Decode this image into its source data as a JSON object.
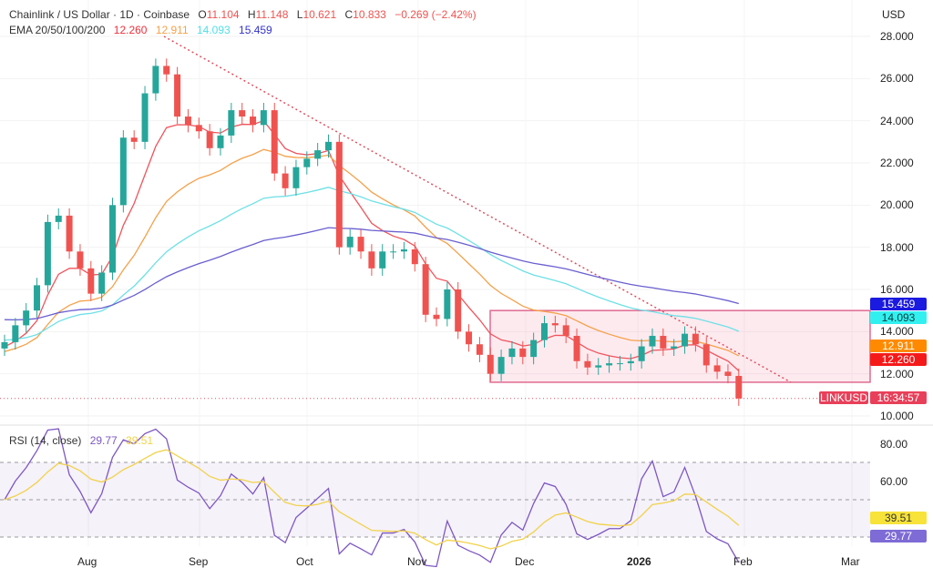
{
  "header": {
    "symbol": "Chainlink / US Dollar · 1D · Coinbase",
    "o_label": "O",
    "o": "11.104",
    "h_label": "H",
    "h": "11.148",
    "l_label": "L",
    "l": "10.621",
    "c_label": "C",
    "c": "10.833",
    "change": "−0.269 (−2.42%)"
  },
  "ema": {
    "label": "EMA 20/50/100/200",
    "v20": "12.260",
    "v50": "12.911",
    "v100": "14.093",
    "v200": "15.459"
  },
  "rsi": {
    "label": "RSI (14, close)",
    "value": "29.77",
    "ma": "39.51"
  },
  "currency": "USD",
  "symbol_tag": "LINKUSD",
  "countdown": "16:34:57",
  "colors": {
    "up": "#26a69a",
    "down": "#ef5350",
    "ema20": "#f0545c",
    "ema50": "#f5a14a",
    "ema100": "#6ee0e6",
    "ema200": "#6a5fd0",
    "rsi": "#7e57c2",
    "rsi_ma": "#f2d24a"
  },
  "chart_data": {
    "type": "candlestick",
    "start_date": "2025-07-08",
    "step_days": 3,
    "closes": [
      13.5,
      14.3,
      15,
      16.2,
      19.2,
      19.5,
      17.8,
      17,
      15.8,
      16.8,
      20,
      23.2,
      23,
      25.3,
      26.6,
      26.2,
      24.2,
      23.8,
      23.5,
      22.7,
      23.3,
      24.5,
      24.2,
      23.8,
      24.5,
      21.5,
      20.8,
      21.8,
      22.2,
      22.6,
      23,
      18,
      18.5,
      17.8,
      17,
      17.8,
      17.8,
      17.9,
      17.2,
      14.8,
      14.6,
      16,
      14,
      13.4,
      12.9,
      12,
      12.8,
      13.2,
      12.8,
      13.6,
      14.4,
      14.3,
      13.8,
      12.6,
      12.3,
      12.4,
      12.5,
      12.5,
      12.6,
      13.3,
      13.8,
      13.2,
      13.3,
      13.9,
      13.4,
      12.4,
      12.1,
      11.9,
      10.83
    ],
    "ema_seeds": {
      "ema20": 13.2,
      "ema50": 13.0,
      "ema100": 13.6,
      "ema200": 14.6
    },
    "y_ticks": [
      "28.000",
      "26.000",
      "24.000",
      "22.000",
      "20.000",
      "18.000",
      "16.000",
      "14.000",
      "12.000",
      "10.000"
    ],
    "ylim": [
      10,
      28
    ],
    "rsi_ticks": [
      "80.00",
      "60.00"
    ],
    "rsi_levels": [
      70,
      50,
      30
    ],
    "x_ticks": [
      "Aug",
      "Sep",
      "Oct",
      "Nov",
      "Dec",
      "2026",
      "Feb",
      "Mar"
    ],
    "range_box": [
      11.6,
      15.0
    ],
    "trendline": [
      [
        28.0,
        "2025-08-22"
      ],
      [
        11.6,
        "2026-02-06"
      ]
    ],
    "last_price": 10.833
  }
}
